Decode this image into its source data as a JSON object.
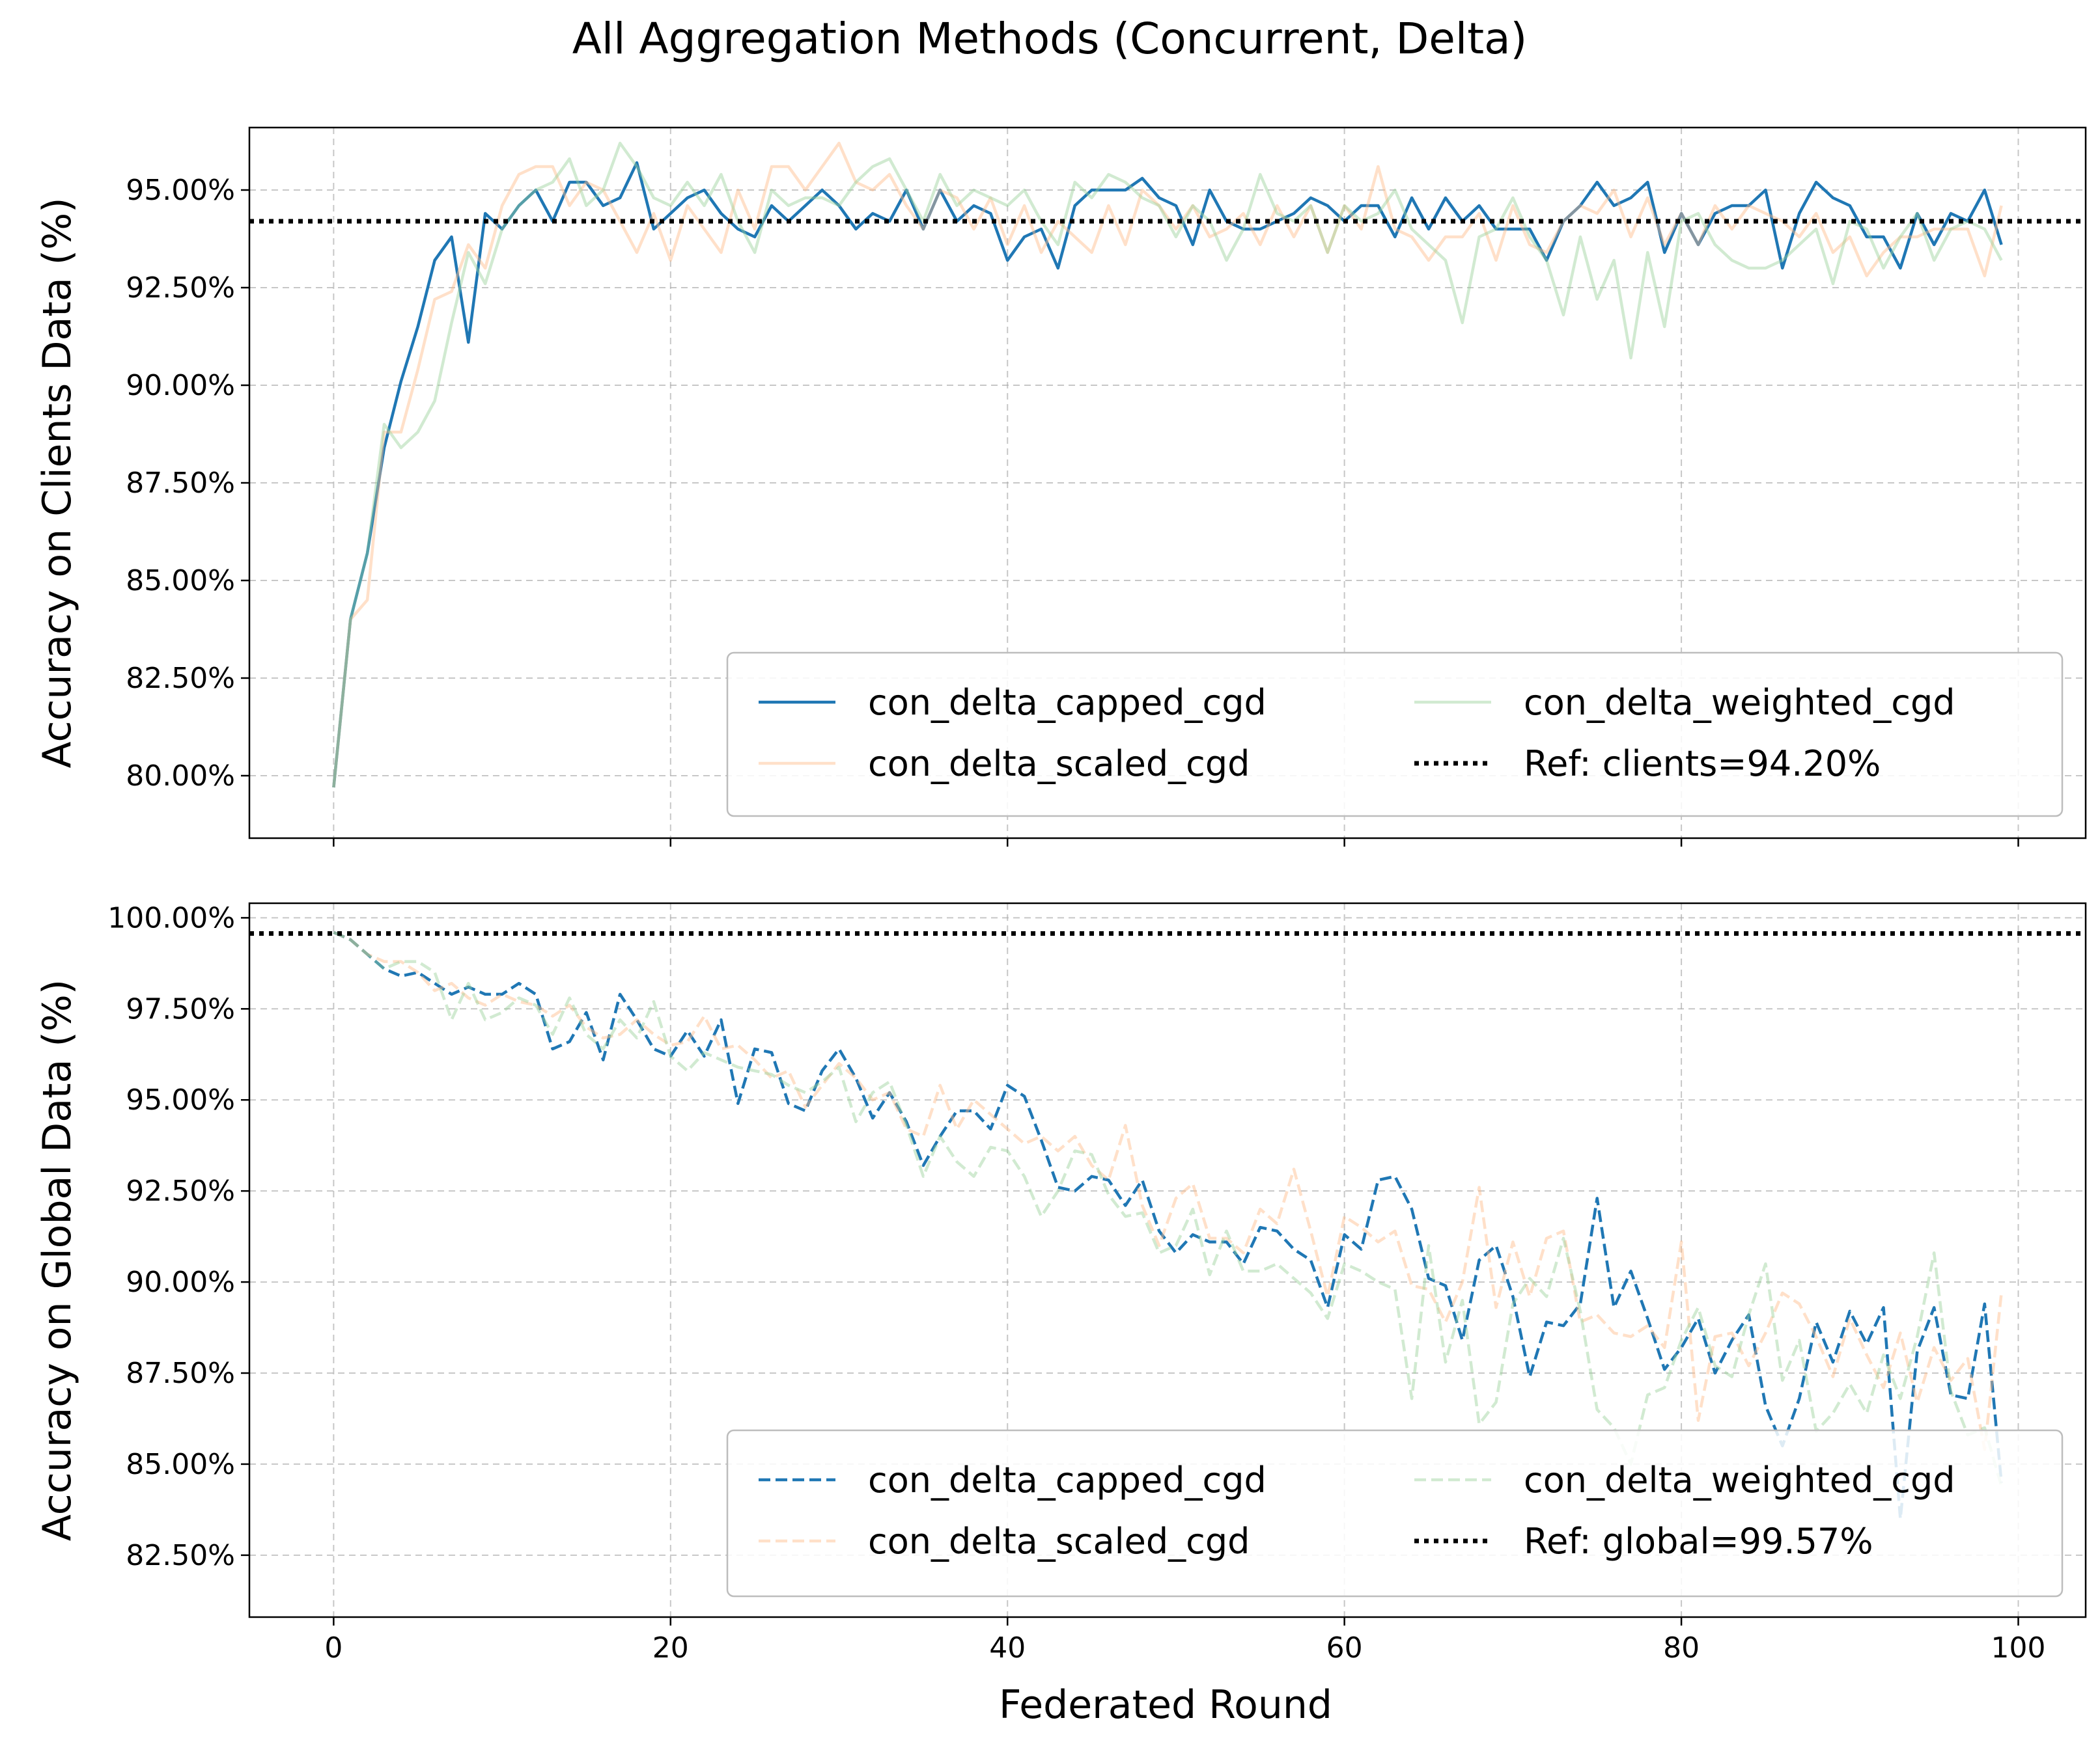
{
  "figure": {
    "suptitle": "All Aggregation Methods (Concurrent, Delta)",
    "xlabel": "Federated Round"
  },
  "colors": {
    "capped": "#1f77b4",
    "scaled": "#ffbb88",
    "weighted": "#98d098",
    "ref": "#000000",
    "grid": "#b0b0b0"
  },
  "chart_data": [
    {
      "type": "line",
      "ylabel": "Accuracy on Clients Data (%)",
      "xlim": [
        -5,
        104
      ],
      "ylim": [
        78.4,
        96.6
      ],
      "xticks": [
        0,
        20,
        40,
        60,
        80,
        100
      ],
      "xtick_labels": [
        "0",
        "20",
        "40",
        "60",
        "80",
        "100"
      ],
      "show_xtick_labels": false,
      "yticks": [
        80,
        82.5,
        85,
        87.5,
        90,
        92.5,
        95
      ],
      "ytick_labels": [
        "80.00%",
        "82.50%",
        "85.00%",
        "87.50%",
        "90.00%",
        "92.50%",
        "95.00%"
      ],
      "grid": true,
      "legend_position": "lower-right",
      "line_style": "solid",
      "series": [
        {
          "name": "con_delta_capped_cgd",
          "key": "capped",
          "opacity": 1.0,
          "values": [
            79.7,
            84.0,
            85.7,
            88.4,
            90.1,
            91.5,
            93.2,
            93.8,
            91.1,
            94.4,
            94.0,
            94.6,
            95.0,
            94.2,
            95.2,
            95.2,
            94.6,
            94.8,
            95.7,
            94.0,
            94.4,
            94.8,
            95.0,
            94.4,
            94.0,
            93.8,
            94.6,
            94.2,
            94.6,
            95.0,
            94.6,
            94.0,
            94.4,
            94.2,
            95.0,
            94.0,
            95.0,
            94.2,
            94.6,
            94.4,
            93.2,
            93.8,
            94.0,
            93.0,
            94.6,
            95.0,
            95.0,
            95.0,
            95.3,
            94.8,
            94.6,
            93.6,
            95.0,
            94.2,
            94.0,
            94.0,
            94.2,
            94.4,
            94.8,
            94.6,
            94.2,
            94.6,
            94.6,
            93.8,
            94.8,
            94.0,
            94.8,
            94.2,
            94.6,
            94.0,
            94.0,
            94.0,
            93.2,
            94.2,
            94.6,
            95.2,
            94.6,
            94.8,
            95.2,
            93.4,
            94.4,
            93.6,
            94.4,
            94.6,
            94.6,
            95.0,
            93.0,
            94.4,
            95.2,
            94.8,
            94.6,
            93.8,
            93.8,
            93.0,
            94.4,
            93.6,
            94.4,
            94.2,
            95.0,
            93.6
          ]
        },
        {
          "name": "con_delta_scaled_cgd",
          "key": "scaled",
          "opacity": 0.45,
          "values": [
            79.7,
            84.0,
            84.5,
            88.8,
            88.8,
            90.4,
            92.2,
            92.4,
            93.6,
            93.0,
            94.6,
            95.4,
            95.6,
            95.6,
            94.6,
            95.2,
            95.0,
            94.2,
            93.4,
            94.4,
            93.2,
            94.6,
            94.0,
            93.4,
            95.0,
            94.0,
            95.6,
            95.6,
            95.0,
            95.6,
            96.2,
            95.2,
            95.0,
            95.4,
            94.6,
            94.0,
            95.0,
            94.8,
            94.0,
            94.8,
            93.6,
            94.6,
            93.4,
            94.2,
            93.8,
            93.4,
            94.6,
            93.6,
            95.0,
            94.6,
            94.0,
            94.6,
            93.8,
            94.0,
            94.4,
            93.6,
            94.6,
            93.8,
            94.6,
            93.4,
            94.6,
            94.0,
            95.6,
            94.0,
            93.8,
            93.2,
            93.8,
            93.8,
            94.4,
            93.2,
            94.6,
            93.6,
            93.4,
            94.2,
            94.6,
            94.4,
            95.0,
            93.8,
            94.8,
            93.6,
            94.4,
            93.6,
            94.6,
            94.0,
            94.6,
            94.4,
            94.2,
            93.8,
            94.4,
            93.4,
            93.8,
            92.8,
            93.4,
            93.8,
            93.8,
            94.0,
            94.0,
            94.0,
            92.8,
            94.6
          ]
        },
        {
          "name": "con_delta_weighted_cgd",
          "key": "weighted",
          "opacity": 0.45,
          "values": [
            79.7,
            84.0,
            85.7,
            89.0,
            88.4,
            88.8,
            89.6,
            91.6,
            93.4,
            92.6,
            94.0,
            94.6,
            95.0,
            95.2,
            95.8,
            94.6,
            95.0,
            96.2,
            95.6,
            94.8,
            94.6,
            95.2,
            94.6,
            95.4,
            94.2,
            93.4,
            95.0,
            94.6,
            94.8,
            94.8,
            94.6,
            95.2,
            95.6,
            95.8,
            95.0,
            94.2,
            95.4,
            94.6,
            95.0,
            94.8,
            94.6,
            95.0,
            94.2,
            93.6,
            95.2,
            94.8,
            95.4,
            95.2,
            94.8,
            94.6,
            93.8,
            94.6,
            94.2,
            93.2,
            94.0,
            95.4,
            94.4,
            94.2,
            94.6,
            93.4,
            94.6,
            94.2,
            94.4,
            95.0,
            94.0,
            93.6,
            93.2,
            91.6,
            93.8,
            94.0,
            94.8,
            93.8,
            93.2,
            91.8,
            93.8,
            92.2,
            93.2,
            90.7,
            93.4,
            91.5,
            94.2,
            94.4,
            93.6,
            93.2,
            93.0,
            93.0,
            93.2,
            93.6,
            94.0,
            92.6,
            94.2,
            94.0,
            93.0,
            93.8,
            94.4,
            93.2,
            94.0,
            94.2,
            94.0,
            93.2
          ]
        }
      ],
      "reference": {
        "name": "Ref: clients=94.20%",
        "value": 94.2
      },
      "legend_order": [
        "capped",
        "scaled",
        "weighted",
        "ref"
      ]
    },
    {
      "type": "line",
      "ylabel": "Accuracy on Global Data (%)",
      "xlim": [
        -5,
        104
      ],
      "ylim": [
        80.8,
        100.4
      ],
      "xticks": [
        0,
        20,
        40,
        60,
        80,
        100
      ],
      "xtick_labels": [
        "0",
        "20",
        "40",
        "60",
        "80",
        "100"
      ],
      "show_xtick_labels": true,
      "yticks": [
        82.5,
        85,
        87.5,
        90,
        92.5,
        95,
        97.5,
        100
      ],
      "ytick_labels": [
        "82.50%",
        "85.00%",
        "87.50%",
        "90.00%",
        "92.50%",
        "95.00%",
        "97.50%",
        "100.00%"
      ],
      "grid": true,
      "legend_position": "lower-right",
      "line_style": "dashed",
      "series": [
        {
          "name": "con_delta_capped_cgd",
          "key": "capped",
          "opacity": 1.0,
          "values": [
            99.6,
            99.4,
            99.0,
            98.6,
            98.4,
            98.5,
            98.2,
            97.9,
            98.1,
            97.9,
            97.9,
            98.2,
            97.9,
            96.4,
            96.6,
            97.4,
            96.1,
            97.9,
            97.2,
            96.4,
            96.2,
            96.9,
            96.2,
            97.2,
            94.9,
            96.4,
            96.3,
            94.9,
            94.7,
            95.8,
            96.4,
            95.6,
            94.5,
            95.2,
            94.4,
            93.2,
            94.0,
            94.7,
            94.7,
            94.2,
            95.4,
            95.1,
            93.9,
            92.6,
            92.5,
            92.9,
            92.8,
            92.1,
            92.8,
            91.4,
            90.8,
            91.3,
            91.1,
            91.1,
            90.5,
            91.5,
            91.4,
            90.9,
            90.6,
            89.3,
            91.3,
            90.9,
            92.8,
            92.9,
            92.0,
            90.1,
            89.9,
            88.4,
            90.6,
            91.0,
            89.6,
            87.4,
            88.9,
            88.8,
            89.4,
            92.3,
            89.3,
            90.3,
            89.0,
            87.6,
            88.2,
            89.0,
            87.5,
            88.4,
            89.1,
            86.6,
            85.5,
            86.8,
            88.9,
            87.8,
            89.2,
            88.3,
            89.3,
            83.5,
            88.1,
            89.3,
            86.9,
            86.8,
            89.4,
            84.5
          ]
        },
        {
          "name": "con_delta_scaled_cgd",
          "key": "scaled",
          "opacity": 0.45,
          "values": [
            99.6,
            99.4,
            99.0,
            98.8,
            98.8,
            98.5,
            98.0,
            98.2,
            97.8,
            97.6,
            97.9,
            97.7,
            97.6,
            97.3,
            97.6,
            97.0,
            96.7,
            96.8,
            97.2,
            96.8,
            96.5,
            96.6,
            97.3,
            96.4,
            96.5,
            96.1,
            95.6,
            95.8,
            94.8,
            95.4,
            96.0,
            95.6,
            95.0,
            95.2,
            94.2,
            94.0,
            95.4,
            94.2,
            95.0,
            94.6,
            94.2,
            93.8,
            94.0,
            93.6,
            94.0,
            93.2,
            92.8,
            94.3,
            92.1,
            91.0,
            92.3,
            92.7,
            91.2,
            91.2,
            90.8,
            92.0,
            91.6,
            93.1,
            91.4,
            89.6,
            91.8,
            91.5,
            91.1,
            91.4,
            89.9,
            89.8,
            88.9,
            90.0,
            92.6,
            89.3,
            91.1,
            89.6,
            91.2,
            91.4,
            88.9,
            89.1,
            88.6,
            88.5,
            88.8,
            88.2,
            91.1,
            86.2,
            88.5,
            88.6,
            87.7,
            88.6,
            89.7,
            89.4,
            88.5,
            87.4,
            89.0,
            88.0,
            87.1,
            88.6,
            86.7,
            88.2,
            87.3,
            87.9,
            85.4,
            89.7
          ]
        },
        {
          "name": "con_delta_weighted_cgd",
          "key": "weighted",
          "opacity": 0.45,
          "values": [
            99.6,
            99.4,
            99.0,
            98.6,
            98.8,
            98.8,
            98.5,
            97.2,
            98.2,
            97.2,
            97.4,
            97.8,
            97.6,
            96.8,
            97.8,
            96.8,
            96.4,
            97.2,
            96.7,
            97.7,
            96.2,
            95.8,
            96.3,
            96.1,
            95.9,
            95.8,
            95.7,
            95.4,
            95.2,
            95.5,
            95.9,
            94.4,
            95.2,
            95.5,
            94.3,
            92.9,
            94.0,
            93.3,
            92.9,
            93.7,
            93.6,
            92.9,
            91.8,
            92.5,
            93.6,
            93.5,
            92.4,
            91.8,
            91.9,
            90.8,
            91.0,
            92.0,
            90.2,
            91.4,
            90.3,
            90.3,
            90.5,
            90.1,
            89.7,
            89.0,
            90.5,
            90.3,
            90.0,
            89.8,
            86.8,
            91.0,
            87.8,
            89.5,
            86.1,
            86.7,
            89.4,
            90.1,
            89.6,
            91.2,
            89.2,
            86.5,
            86.0,
            85.0,
            86.9,
            87.1,
            88.4,
            89.3,
            87.7,
            87.4,
            89.1,
            90.5,
            87.3,
            88.4,
            85.9,
            86.4,
            87.2,
            86.4,
            88.0,
            86.8,
            88.5,
            90.8,
            87.0,
            85.8,
            86.0,
            84.4
          ]
        }
      ],
      "reference": {
        "name": "Ref: global=99.57%",
        "value": 99.57
      },
      "legend_order": [
        "capped",
        "scaled",
        "weighted",
        "ref"
      ]
    }
  ]
}
